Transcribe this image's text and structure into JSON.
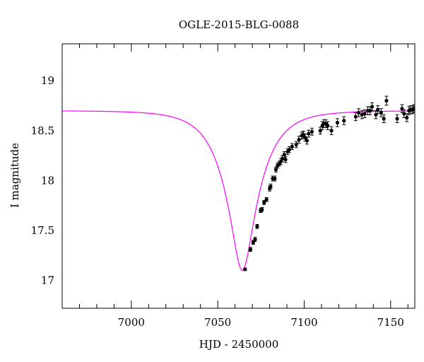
{
  "chart_data": {
    "type": "scatter",
    "title": "OGLE-2015-BLG-0088",
    "xlabel": "HJD - 2450000",
    "ylabel": "I magnitude",
    "xlim": [
      6960,
      7164
    ],
    "ylim": [
      19.37,
      16.72
    ],
    "y_inverted": true,
    "grid": false,
    "x_ticks": [
      7000,
      7050,
      7100,
      7150
    ],
    "x_tick_labels": [
      "7000",
      "7050",
      "7100",
      "7150"
    ],
    "y_ticks": [
      17,
      17.5,
      18,
      18.5,
      19
    ],
    "y_tick_labels": [
      "17",
      "17.5",
      "18",
      "18.5",
      "19"
    ],
    "model": {
      "style": "line",
      "color": "#ff00ff",
      "t0": 7064.2,
      "tE": 18.5,
      "u0": 0.29,
      "I_base": 18.7
    },
    "series": [
      {
        "style": "points-with-errorbars",
        "color": "#000000",
        "x": [
          7065.8,
          7068.9,
          7070.5,
          7071.6,
          7072.8,
          7074.8,
          7075.6,
          7076.8,
          7078.2,
          7080.0,
          7080.6,
          7081.8,
          7083.0,
          7083.6,
          7084.6,
          7085.6,
          7086.5,
          7087.3,
          7088.5,
          7089.2,
          7090.4,
          7091.4,
          7093.0,
          7095.4,
          7097.0,
          7098.6,
          7099.6,
          7100.6,
          7101.6,
          7102.6,
          7104.5,
          7109.3,
          7110.5,
          7111.4,
          7112.5,
          7113.6,
          7115.8,
          7119.2,
          7123.0,
          7129.8,
          7131.5,
          7133.4,
          7135.0,
          7136.8,
          7138.1,
          7139.3,
          7141.5,
          7142.6,
          7144.5,
          7146.1,
          7147.6,
          7153.8,
          7156.6,
          7157.8,
          7159.4,
          7160.6,
          7161.6,
          7162.6,
          7163.4
        ],
        "y": [
          17.11,
          17.31,
          17.38,
          17.41,
          17.54,
          17.7,
          17.71,
          17.78,
          17.81,
          17.92,
          17.94,
          18.02,
          18.02,
          18.11,
          18.15,
          18.17,
          18.19,
          18.22,
          18.26,
          18.21,
          18.29,
          18.31,
          18.34,
          18.36,
          18.41,
          18.45,
          18.46,
          18.43,
          18.4,
          18.47,
          18.49,
          18.5,
          18.55,
          18.57,
          18.57,
          18.55,
          18.5,
          18.58,
          18.6,
          18.64,
          18.68,
          18.66,
          18.67,
          18.7,
          18.7,
          18.74,
          18.66,
          18.71,
          18.68,
          18.62,
          18.8,
          18.62,
          18.72,
          18.67,
          18.63,
          18.7,
          18.71,
          18.71,
          18.72
        ],
        "err": [
          0.012,
          0.02,
          0.02,
          0.02,
          0.02,
          0.02,
          0.02,
          0.02,
          0.02,
          0.025,
          0.025,
          0.025,
          0.025,
          0.025,
          0.025,
          0.025,
          0.03,
          0.03,
          0.03,
          0.03,
          0.03,
          0.03,
          0.03,
          0.03,
          0.035,
          0.035,
          0.035,
          0.035,
          0.035,
          0.035,
          0.035,
          0.035,
          0.04,
          0.04,
          0.04,
          0.04,
          0.04,
          0.04,
          0.04,
          0.04,
          0.04,
          0.04,
          0.04,
          0.04,
          0.04,
          0.04,
          0.04,
          0.04,
          0.04,
          0.04,
          0.045,
          0.04,
          0.04,
          0.04,
          0.04,
          0.04,
          0.04,
          0.04,
          0.04
        ]
      }
    ]
  }
}
